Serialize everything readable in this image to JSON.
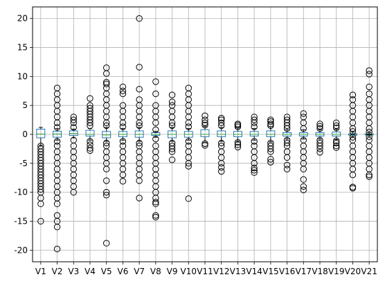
{
  "chart_data": {
    "type": "boxplot",
    "title": "",
    "xlabel": "",
    "ylabel": "",
    "ylim": [
      -22,
      22
    ],
    "yticks": [
      -20,
      -15,
      -10,
      -5,
      0,
      5,
      10,
      15,
      20
    ],
    "grid": true,
    "colors": {
      "box": "#1f77b4",
      "median": "#2ca02c",
      "whisker": "#000000",
      "outlier": "#000000",
      "grid": "#b0b0b0"
    },
    "categories": [
      "V1",
      "V2",
      "V3",
      "V4",
      "V5",
      "V6",
      "V7",
      "V8",
      "V9",
      "V10",
      "V11",
      "V12",
      "V13",
      "V14",
      "V15",
      "V16",
      "V17",
      "V18",
      "V19",
      "V20",
      "V21"
    ],
    "series": [
      {
        "q1": -0.6,
        "median": 0.05,
        "q3": 0.9,
        "whisker_low": -1.9,
        "whisker_high": 1.2,
        "outliers": [
          -2.0,
          -2.5,
          -3,
          -3.5,
          -4,
          -4.5,
          -5,
          -5.5,
          -6,
          -6.5,
          -7,
          -7.5,
          -8,
          -8.5,
          -9,
          -9.5,
          -10,
          -11,
          -12,
          -15
        ]
      },
      {
        "q1": -0.5,
        "median": 0.05,
        "q3": 0.55,
        "whisker_low": -1.0,
        "whisker_high": 1.0,
        "outliers": [
          -1.2,
          -2,
          -3,
          -4,
          -5,
          -6,
          -7,
          -8,
          -9,
          -10,
          -11,
          -12,
          -14,
          -15,
          -16,
          -19.8,
          1.2,
          2,
          3,
          4,
          5,
          6,
          7,
          8
        ]
      },
      {
        "q1": -0.2,
        "median": 0.15,
        "q3": 0.6,
        "whisker_low": -0.6,
        "whisker_high": 0.9,
        "outliers": [
          -1,
          -2,
          -3,
          -4,
          -5,
          -6,
          -7,
          -8,
          -9,
          -10,
          1.2,
          2,
          2.5,
          3
        ]
      },
      {
        "q1": -0.3,
        "median": 0.0,
        "q3": 0.7,
        "whisker_low": -1.0,
        "whisker_high": 1.0,
        "outliers": [
          -1.2,
          -1.8,
          -2.4,
          -2.8,
          1.5,
          2,
          2.5,
          3,
          3.5,
          4,
          4.5,
          5,
          6.2
        ]
      },
      {
        "q1": -0.6,
        "median": -0.1,
        "q3": 0.5,
        "whisker_low": -1.2,
        "whisker_high": 1.2,
        "outliers": [
          -1.5,
          -2,
          -3,
          -4,
          -5,
          -6,
          -8,
          -10,
          -10.5,
          -18.8,
          1.5,
          2,
          3,
          4,
          5,
          6,
          7,
          8,
          8.7,
          9,
          10.5,
          11.5
        ]
      },
      {
        "q1": -0.4,
        "median": 0.0,
        "q3": 0.5,
        "whisker_low": -1.0,
        "whisker_high": 1.0,
        "outliers": [
          -1.2,
          -2,
          -3,
          -4,
          -5,
          -6,
          -7,
          -8.1,
          1.3,
          2,
          3,
          4,
          5,
          7,
          7.5,
          8.2
        ]
      },
      {
        "q1": -0.5,
        "median": 0.0,
        "q3": 0.6,
        "whisker_low": -1.2,
        "whisker_high": 1.2,
        "outliers": [
          -1.5,
          -2,
          -3,
          -4,
          -5,
          -6,
          -7,
          -8,
          -11,
          1.5,
          2,
          3,
          4,
          5,
          6,
          7.8,
          11.6,
          20
        ]
      },
      {
        "q1": -0.2,
        "median": 0.0,
        "q3": 0.3,
        "whisker_low": -0.5,
        "whisker_high": 0.5,
        "outliers": [
          -0.8,
          -2,
          -3,
          -4,
          -5,
          -6,
          -7,
          -8,
          -9,
          -10,
          -11,
          -11.7,
          -12,
          -14,
          -14.3,
          0.8,
          2,
          3,
          4,
          5,
          7,
          9.1
        ]
      },
      {
        "q1": -0.6,
        "median": 0.0,
        "q3": 0.6,
        "whisker_low": -1.2,
        "whisker_high": 1.2,
        "outliers": [
          -1.5,
          -2,
          -2.5,
          -3,
          -4.4,
          1.5,
          2,
          3,
          4,
          5,
          5.6,
          6.8
        ]
      },
      {
        "q1": -0.5,
        "median": 0.0,
        "q3": 0.5,
        "whisker_low": -1.0,
        "whisker_high": 1.0,
        "outliers": [
          -1.2,
          -2,
          -3,
          -4,
          -5,
          -5.5,
          -11.1,
          1.3,
          2,
          3,
          4,
          5,
          6,
          7,
          8
        ]
      },
      {
        "q1": -0.4,
        "median": 0.0,
        "q3": 0.8,
        "whisker_low": -1.4,
        "whisker_high": 1.4,
        "outliers": [
          -1.6,
          -1.9,
          1.6,
          2,
          2.5,
          3.2
        ]
      },
      {
        "q1": -0.4,
        "median": 0.0,
        "q3": 0.6,
        "whisker_low": -1.2,
        "whisker_high": 1.2,
        "outliers": [
          -1.5,
          -2,
          -3,
          -4,
          -5,
          -5.7,
          -6.4,
          1.5,
          2,
          2.5,
          2.8
        ]
      },
      {
        "q1": -0.4,
        "median": 0.0,
        "q3": 0.5,
        "whisker_low": -1.2,
        "whisker_high": 1.1,
        "outliers": [
          -1.4,
          -1.8,
          -2.2,
          1.3,
          1.6,
          1.8
        ]
      },
      {
        "q1": -0.3,
        "median": 0.0,
        "q3": 0.5,
        "whisker_low": -1.0,
        "whisker_high": 1.0,
        "outliers": [
          -1.2,
          -2,
          -3,
          -4,
          -5,
          -5.8,
          -6.2,
          -6.6,
          1.3,
          2,
          2.5,
          3
        ]
      },
      {
        "q1": -0.4,
        "median": 0.0,
        "q3": 0.6,
        "whisker_low": -1.3,
        "whisker_high": 1.3,
        "outliers": [
          -1.5,
          -2,
          -2.5,
          -3,
          -4.3,
          -4.8,
          1.5,
          1.8,
          2.2,
          2.5
        ]
      },
      {
        "q1": -0.3,
        "median": 0.0,
        "q3": 0.3,
        "whisker_low": -0.8,
        "whisker_high": 0.8,
        "outliers": [
          -1,
          -1.5,
          -2,
          -3,
          -4,
          -5.3,
          -6,
          1,
          1.5,
          2,
          2.5,
          3
        ]
      },
      {
        "q1": -0.3,
        "median": 0.0,
        "q3": 0.3,
        "whisker_low": -0.8,
        "whisker_high": 0.8,
        "outliers": [
          -1,
          -2,
          -3,
          -4,
          -5,
          -6,
          -7.8,
          -9,
          -9.6,
          1,
          2,
          3,
          3.6
        ]
      },
      {
        "q1": -0.3,
        "median": 0.0,
        "q3": 0.3,
        "whisker_low": -0.8,
        "whisker_high": 0.8,
        "outliers": [
          -1,
          -1.5,
          -2,
          -2.5,
          -3.1,
          1,
          1.4,
          1.8
        ]
      },
      {
        "q1": -0.3,
        "median": 0.0,
        "q3": 0.4,
        "whisker_low": -0.9,
        "whisker_high": 0.9,
        "outliers": [
          -1.1,
          -1.5,
          -2,
          -2.3,
          1.1,
          1.5,
          2
        ]
      },
      {
        "q1": -0.15,
        "median": 0.0,
        "q3": 0.1,
        "whisker_low": -0.4,
        "whisker_high": 0.4,
        "outliers": [
          -0.5,
          -1,
          -2,
          -3,
          -4,
          -5,
          -6,
          -7,
          -9.1,
          -9.3,
          0.5,
          1,
          2,
          3,
          4,
          5,
          6,
          6.8
        ]
      },
      {
        "q1": -0.1,
        "median": 0.0,
        "q3": 0.08,
        "whisker_low": -0.3,
        "whisker_high": 0.3,
        "outliers": [
          -0.4,
          -1,
          -2,
          -3,
          -4,
          -5,
          -6,
          -7,
          -7.3,
          0.4,
          1,
          2,
          3,
          4,
          5,
          6,
          7,
          8.2,
          10.4,
          11
        ]
      }
    ]
  }
}
